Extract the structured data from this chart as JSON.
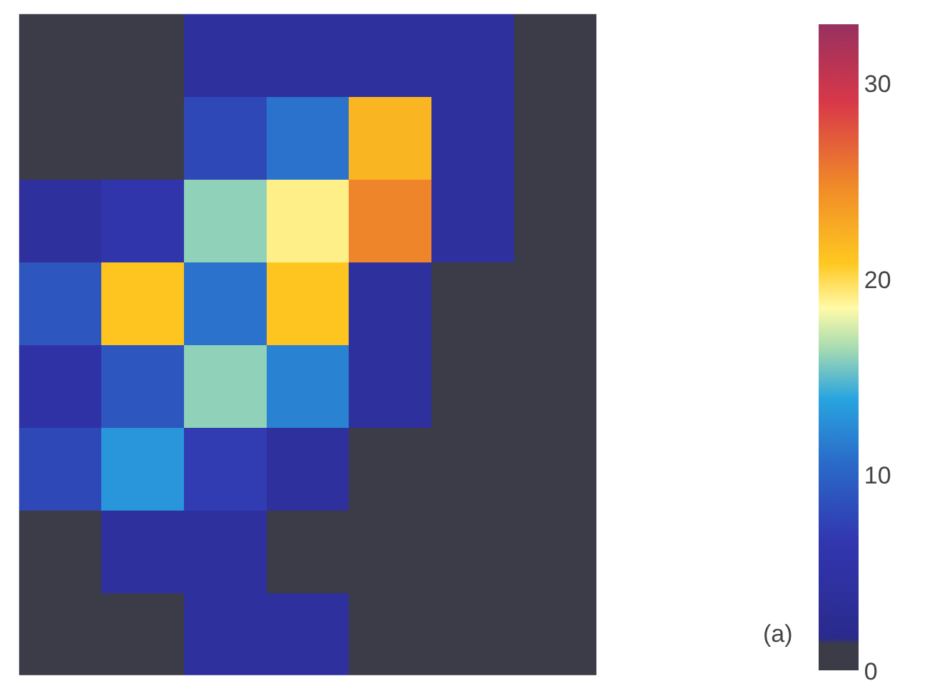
{
  "chart_data": {
    "type": "heatmap",
    "categories": [
      null,
      null,
      null,
      null,
      null,
      null,
      null
    ],
    "y_categories": [
      null,
      null,
      null,
      null,
      null,
      null,
      null,
      null
    ],
    "cells": [
      [
        0,
        0,
        4,
        4,
        4,
        4,
        0
      ],
      [
        0,
        0,
        8,
        11,
        22,
        4,
        0
      ],
      [
        4,
        6,
        16,
        19,
        25,
        4,
        0
      ],
      [
        9,
        21,
        11,
        21,
        4,
        0,
        0
      ],
      [
        5,
        9,
        16,
        12,
        4,
        0,
        0
      ],
      [
        8,
        13,
        7,
        4,
        0,
        0,
        0
      ],
      [
        0,
        4,
        4,
        0,
        0,
        0,
        0
      ],
      [
        0,
        0,
        4,
        4,
        0,
        0,
        0
      ]
    ],
    "clim": [
      0,
      33
    ],
    "cticks": [
      0,
      10,
      20,
      30
    ],
    "annotations": [
      "(a)"
    ]
  }
}
